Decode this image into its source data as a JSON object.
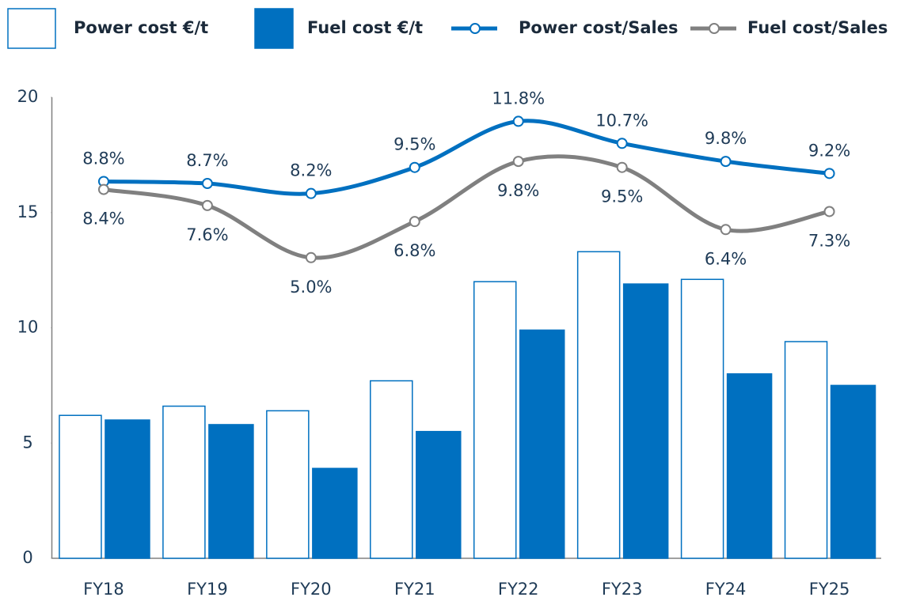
{
  "chart_data": {
    "type": "bar_line",
    "categories": [
      "FY18",
      "FY19",
      "FY20",
      "FY21",
      "FY22",
      "FY23",
      "FY24",
      "FY25"
    ],
    "ylim": [
      0,
      20
    ],
    "yticks": [
      0,
      5,
      10,
      15,
      20
    ],
    "y2lim": [
      -10,
      13
    ],
    "legend": "top",
    "series": [
      {
        "name": "Power cost €/t",
        "type": "bar",
        "color": "#ffffff",
        "edge": "#0070c0",
        "values": [
          6.2,
          6.6,
          6.4,
          7.7,
          12.0,
          13.3,
          12.1,
          9.4
        ]
      },
      {
        "name": "Fuel cost €/t",
        "type": "bar",
        "color": "#0070c0",
        "values": [
          6.0,
          5.8,
          3.9,
          5.5,
          9.9,
          11.9,
          8.0,
          7.5
        ]
      },
      {
        "name": "Power cost/Sales",
        "type": "line",
        "axis": "y2",
        "color": "#0070c0",
        "values": [
          8.8,
          8.7,
          8.2,
          9.5,
          11.8,
          10.7,
          9.8,
          9.2
        ],
        "value_labels": [
          "8.8%",
          "8.7%",
          "8.2%",
          "9.5%",
          "11.8%",
          "10.7%",
          "9.8%",
          "9.2%"
        ],
        "label_position": "above"
      },
      {
        "name": "Fuel cost/Sales",
        "type": "line",
        "axis": "y2",
        "color": "#808080",
        "values": [
          8.4,
          7.6,
          5.0,
          6.8,
          9.8,
          9.5,
          6.4,
          7.3
        ],
        "value_labels": [
          "8.4%",
          "7.6%",
          "5.0%",
          "6.8%",
          "9.8%",
          "9.5%",
          "6.4%",
          "7.3%"
        ],
        "label_position": "below"
      }
    ]
  }
}
